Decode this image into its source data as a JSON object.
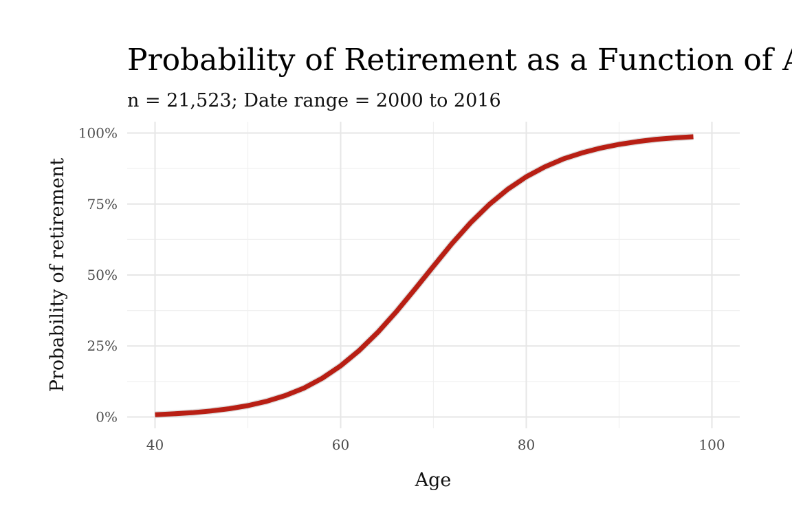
{
  "chart_data": {
    "type": "line",
    "title": "Probability of Retirement as a Function of Age",
    "subtitle": "n = 21,523; Date range = 2000 to 2016",
    "xlabel": "Age",
    "ylabel": "Probability of retirement",
    "xlim": [
      37,
      103
    ],
    "ylim": [
      -0.04,
      1.04
    ],
    "x_ticks": [
      40,
      60,
      80,
      100
    ],
    "x_minor_ticks": [
      50,
      70,
      90
    ],
    "y_ticks": [
      0,
      0.25,
      0.5,
      0.75,
      1.0
    ],
    "y_tick_labels": [
      "0%",
      "25%",
      "50%",
      "75%",
      "100%"
    ],
    "y_minor_ticks": [
      0.125,
      0.375,
      0.625,
      0.875
    ],
    "grid": true,
    "legend": "none",
    "series": [
      {
        "color": "#b81f14",
        "x": [
          40,
          42,
          44,
          46,
          48,
          50,
          52,
          54,
          56,
          58,
          60,
          62,
          64,
          66,
          68,
          70,
          72,
          74,
          76,
          78,
          80,
          82,
          84,
          86,
          88,
          90,
          92,
          94,
          96,
          98
        ],
        "y": [
          0.008,
          0.011,
          0.015,
          0.021,
          0.029,
          0.04,
          0.055,
          0.075,
          0.101,
          0.136,
          0.18,
          0.234,
          0.298,
          0.371,
          0.45,
          0.531,
          0.611,
          0.684,
          0.748,
          0.802,
          0.846,
          0.881,
          0.909,
          0.93,
          0.947,
          0.96,
          0.97,
          0.978,
          0.983,
          0.987
        ]
      }
    ]
  }
}
